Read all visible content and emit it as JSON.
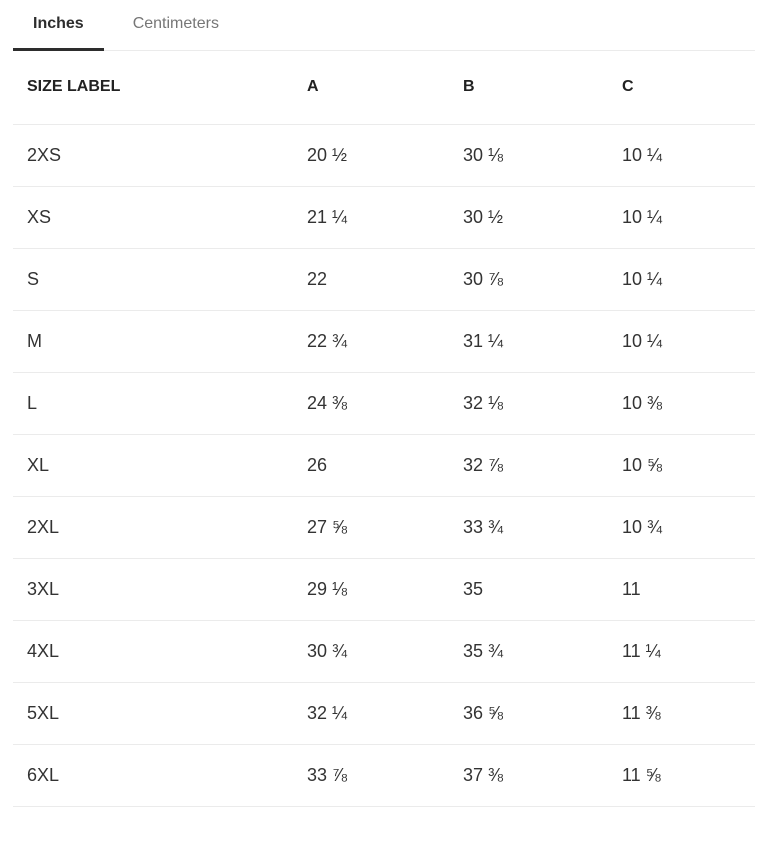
{
  "tabs": [
    {
      "label": "Inches",
      "active": true
    },
    {
      "label": "Centimeters",
      "active": false
    }
  ],
  "table": {
    "columns": [
      "SIZE LABEL",
      "A",
      "B",
      "C"
    ],
    "rows": [
      [
        "2XS",
        "20 ½",
        "30 ⅛",
        "10 ¼"
      ],
      [
        "XS",
        "21 ¼",
        "30 ½",
        "10 ¼"
      ],
      [
        "S",
        "22",
        "30 ⅞",
        "10 ¼"
      ],
      [
        "M",
        "22 ¾",
        "31 ¼",
        "10 ¼"
      ],
      [
        "L",
        "24 ⅜",
        "32 ⅛",
        "10 ⅜"
      ],
      [
        "XL",
        "26",
        "32 ⅞",
        "10 ⅝"
      ],
      [
        "2XL",
        "27 ⅝",
        "33 ¾",
        "10 ¾"
      ],
      [
        "3XL",
        "29 ⅛",
        "35",
        "11"
      ],
      [
        "4XL",
        "30 ¾",
        "35 ¾",
        "11 ¼"
      ],
      [
        "5XL",
        "32 ¼",
        "36 ⅝",
        "11 ⅜"
      ],
      [
        "6XL",
        "33 ⅞",
        "37 ⅜",
        "11 ⅝"
      ]
    ]
  },
  "colors": {
    "text": "#2d2d2d",
    "muted_tab": "#767676",
    "divider": "#ebebeb",
    "active_tab_underline": "#2d2d2d"
  }
}
